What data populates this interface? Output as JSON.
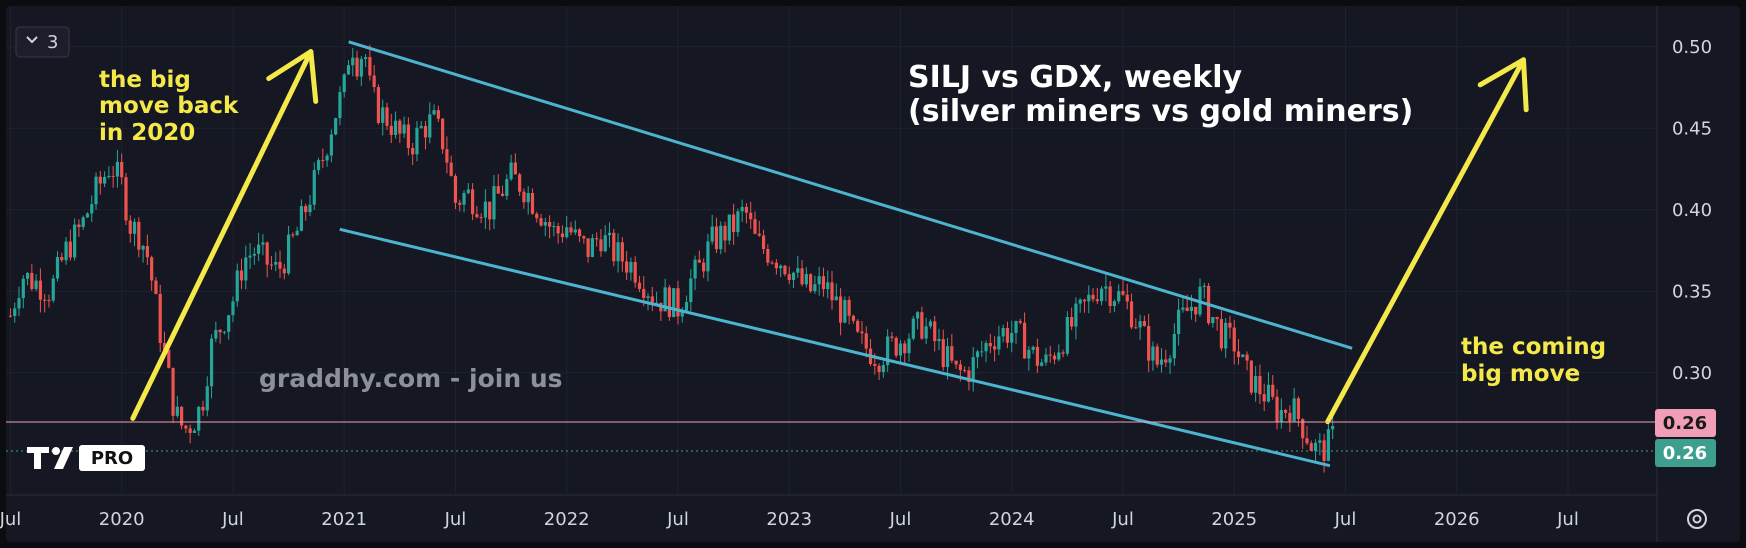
{
  "header": {
    "collapse_count": "3"
  },
  "annotations": {
    "title_line1": "SILJ vs GDX, weekly",
    "title_line2": "(silver miners vs gold miners)",
    "left_line1": "the big",
    "left_line2": "move back",
    "left_line3": "in 2020",
    "right_line1": "the coming",
    "right_line2": "big move",
    "watermark": "graddhy.com - join us",
    "logo_badge": "PRO"
  },
  "price_badges": {
    "upper": {
      "label": "0.26",
      "color": "#f19fb7",
      "text_color": "#1a1a1a"
    },
    "lower": {
      "label": "0.26",
      "color": "#3f9f8e",
      "text_color": "#ffffff"
    }
  },
  "colors": {
    "background": "#151822",
    "up_candle": "#26a69a",
    "down_candle": "#ef5350",
    "channel": "#4db4cf",
    "arrow": "#f5e94a",
    "grid": "#1f2230"
  },
  "icons": {
    "collapse": "chevron-down-icon",
    "settings": "gear-icon"
  },
  "chart_data": {
    "type": "candlestick",
    "title": "SILJ vs GDX, weekly",
    "subtitle": "(silver miners vs gold miners)",
    "y_ticks": [
      "0.50",
      "0.45",
      "0.40",
      "0.35",
      "0.30"
    ],
    "y_tick_values": [
      0.5,
      0.45,
      0.4,
      0.35,
      0.3
    ],
    "x_ticks": [
      "Jul",
      "2020",
      "Jul",
      "2021",
      "Jul",
      "2022",
      "Jul",
      "2023",
      "Jul",
      "2024",
      "Jul",
      "2025",
      "Jul",
      "2026",
      "Jul"
    ],
    "x_tick_dates": [
      2019.5,
      2020.0,
      2020.5,
      2021.0,
      2021.5,
      2022.0,
      2022.5,
      2023.0,
      2023.5,
      2024.0,
      2024.5,
      2025.0,
      2025.5,
      2026.0,
      2026.5
    ],
    "xlim": [
      2019.48,
      2026.9
    ],
    "ylim": [
      0.225,
      0.525
    ],
    "grid": true,
    "last_price": 0.26,
    "price_path": [
      [
        2019.5,
        0.335
      ],
      [
        2019.55,
        0.36
      ],
      [
        2019.62,
        0.355
      ],
      [
        2019.68,
        0.35
      ],
      [
        2019.75,
        0.375
      ],
      [
        2019.82,
        0.39
      ],
      [
        2019.88,
        0.41
      ],
      [
        2019.95,
        0.428
      ],
      [
        2020.0,
        0.415
      ],
      [
        2020.04,
        0.39
      ],
      [
        2020.08,
        0.385
      ],
      [
        2020.12,
        0.37
      ],
      [
        2020.16,
        0.335
      ],
      [
        2020.2,
        0.305
      ],
      [
        2020.24,
        0.275
      ],
      [
        2020.28,
        0.265
      ],
      [
        2020.32,
        0.27
      ],
      [
        2020.36,
        0.28
      ],
      [
        2020.4,
        0.315
      ],
      [
        2020.45,
        0.33
      ],
      [
        2020.5,
        0.345
      ],
      [
        2020.55,
        0.37
      ],
      [
        2020.6,
        0.375
      ],
      [
        2020.65,
        0.368
      ],
      [
        2020.7,
        0.362
      ],
      [
        2020.75,
        0.375
      ],
      [
        2020.8,
        0.39
      ],
      [
        2020.85,
        0.41
      ],
      [
        2020.9,
        0.43
      ],
      [
        2020.95,
        0.455
      ],
      [
        2021.0,
        0.475
      ],
      [
        2021.03,
        0.505
      ],
      [
        2021.06,
        0.49
      ],
      [
        2021.09,
        0.5
      ],
      [
        2021.12,
        0.47
      ],
      [
        2021.16,
        0.46
      ],
      [
        2021.2,
        0.455
      ],
      [
        2021.25,
        0.445
      ],
      [
        2021.3,
        0.44
      ],
      [
        2021.35,
        0.45
      ],
      [
        2021.4,
        0.455
      ],
      [
        2021.45,
        0.44
      ],
      [
        2021.5,
        0.405
      ],
      [
        2021.55,
        0.41
      ],
      [
        2021.6,
        0.405
      ],
      [
        2021.65,
        0.4
      ],
      [
        2021.7,
        0.41
      ],
      [
        2021.75,
        0.42
      ],
      [
        2021.8,
        0.415
      ],
      [
        2021.85,
        0.405
      ],
      [
        2021.9,
        0.395
      ],
      [
        2021.95,
        0.385
      ],
      [
        2022.0,
        0.39
      ],
      [
        2022.05,
        0.38
      ],
      [
        2022.1,
        0.375
      ],
      [
        2022.15,
        0.385
      ],
      [
        2022.2,
        0.375
      ],
      [
        2022.25,
        0.37
      ],
      [
        2022.3,
        0.365
      ],
      [
        2022.35,
        0.355
      ],
      [
        2022.4,
        0.345
      ],
      [
        2022.45,
        0.345
      ],
      [
        2022.5,
        0.34
      ],
      [
        2022.55,
        0.355
      ],
      [
        2022.6,
        0.365
      ],
      [
        2022.65,
        0.38
      ],
      [
        2022.7,
        0.385
      ],
      [
        2022.75,
        0.39
      ],
      [
        2022.8,
        0.4
      ],
      [
        2022.85,
        0.38
      ],
      [
        2022.9,
        0.375
      ],
      [
        2022.95,
        0.37
      ],
      [
        2023.0,
        0.365
      ],
      [
        2023.05,
        0.355
      ],
      [
        2023.1,
        0.35
      ],
      [
        2023.15,
        0.355
      ],
      [
        2023.2,
        0.345
      ],
      [
        2023.25,
        0.335
      ],
      [
        2023.3,
        0.32
      ],
      [
        2023.35,
        0.315
      ],
      [
        2023.4,
        0.31
      ],
      [
        2023.45,
        0.315
      ],
      [
        2023.5,
        0.32
      ],
      [
        2023.55,
        0.325
      ],
      [
        2023.6,
        0.33
      ],
      [
        2023.65,
        0.32
      ],
      [
        2023.7,
        0.31
      ],
      [
        2023.75,
        0.3
      ],
      [
        2023.8,
        0.3
      ],
      [
        2023.85,
        0.31
      ],
      [
        2023.9,
        0.32
      ],
      [
        2023.95,
        0.325
      ],
      [
        2024.0,
        0.325
      ],
      [
        2024.05,
        0.32
      ],
      [
        2024.1,
        0.31
      ],
      [
        2024.15,
        0.305
      ],
      [
        2024.2,
        0.315
      ],
      [
        2024.25,
        0.325
      ],
      [
        2024.3,
        0.335
      ],
      [
        2024.35,
        0.345
      ],
      [
        2024.4,
        0.355
      ],
      [
        2024.45,
        0.35
      ],
      [
        2024.5,
        0.345
      ],
      [
        2024.55,
        0.335
      ],
      [
        2024.6,
        0.32
      ],
      [
        2024.65,
        0.305
      ],
      [
        2024.7,
        0.315
      ],
      [
        2024.75,
        0.33
      ],
      [
        2024.8,
        0.34
      ],
      [
        2024.85,
        0.348
      ],
      [
        2024.9,
        0.335
      ],
      [
        2024.95,
        0.322
      ],
      [
        2025.0,
        0.318
      ],
      [
        2025.05,
        0.3
      ],
      [
        2025.1,
        0.292
      ],
      [
        2025.15,
        0.285
      ],
      [
        2025.2,
        0.275
      ],
      [
        2025.25,
        0.28
      ],
      [
        2025.3,
        0.27
      ],
      [
        2025.35,
        0.255
      ],
      [
        2025.38,
        0.252
      ],
      [
        2025.42,
        0.255
      ],
      [
        2025.45,
        0.262
      ]
    ],
    "channel_upper": [
      [
        2021.02,
        0.503
      ],
      [
        2025.53,
        0.315
      ]
    ],
    "channel_lower": [
      [
        2020.98,
        0.388
      ],
      [
        2025.43,
        0.243
      ]
    ],
    "arrows": [
      {
        "from": [
          2020.05,
          0.272
        ],
        "to": [
          2020.85,
          0.497
        ]
      },
      {
        "from": [
          2025.42,
          0.27
        ],
        "to": [
          2026.3,
          0.492
        ]
      }
    ]
  }
}
